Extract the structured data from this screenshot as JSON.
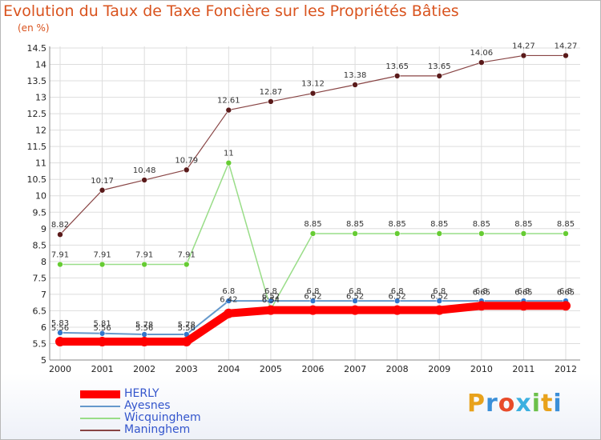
{
  "page": {
    "title": "Evolution du Taux de Taxe Foncière sur les Propriétés Bâties",
    "unit": "(en %)",
    "logo": "Proxiti",
    "logo_colors": [
      "#e8a21c",
      "#3b8fd8",
      "#e84b2a",
      "#3bb0e0",
      "#6cc04a",
      "#e8a21c",
      "#3b8fd8"
    ]
  },
  "chart_data": {
    "type": "line",
    "title": "Evolution du Taux de Taxe Foncière sur les Propriétés Bâties",
    "ylabel": "(en %)",
    "xlabel": "",
    "x": [
      "2000",
      "2001",
      "2002",
      "2003",
      "2004",
      "2005",
      "2006",
      "2007",
      "2008",
      "2009",
      "2010",
      "2011",
      "2012"
    ],
    "ylim": [
      5,
      14.5
    ],
    "yticks": [
      "5",
      "5.5",
      "6",
      "6.5",
      "7",
      "7.5",
      "8",
      "8.5",
      "9",
      "9.5",
      "10",
      "10.5",
      "11",
      "11.5",
      "12",
      "12.5",
      "13",
      "13.5",
      "14",
      "14.5"
    ],
    "grid": true,
    "legend_position": "bottom-left",
    "series": [
      {
        "name": "HERLY",
        "color": "#ff0000",
        "point_color": "#ff0000",
        "values": [
          5.56,
          5.56,
          5.56,
          5.56,
          6.42,
          6.52,
          6.52,
          6.52,
          6.52,
          6.52,
          6.65,
          6.65,
          6.65
        ],
        "labels": [
          "5.56",
          "5.56",
          "5.56",
          "5.56",
          "6.42",
          "6.52",
          "6.52",
          "6.52",
          "6.52",
          "6.52",
          "6.65",
          "6.65",
          "6.65"
        ]
      },
      {
        "name": "Ayesnes",
        "color": "#6699cc",
        "point_color": "#3377cc",
        "values": [
          5.83,
          5.81,
          5.78,
          5.78,
          6.8,
          6.8,
          6.8,
          6.8,
          6.8,
          6.8,
          6.8,
          6.8,
          6.8
        ],
        "labels": [
          "5.83",
          "5.81",
          "5.78",
          "5.78",
          "6.8",
          "6.8",
          "6.8",
          "6.8",
          "6.8",
          "6.8",
          "6.8",
          "6.8",
          "6.8"
        ]
      },
      {
        "name": "Wicquinghem",
        "color": "#99dd88",
        "point_color": "#66cc33",
        "values": [
          7.91,
          7.91,
          7.91,
          7.91,
          11,
          6.54,
          8.85,
          8.85,
          8.85,
          8.85,
          8.85,
          8.85,
          8.85
        ],
        "labels": [
          "7.91",
          "7.91",
          "7.91",
          "7.91",
          "11",
          "6.54",
          "8.85",
          "8.85",
          "8.85",
          "8.85",
          "8.85",
          "8.85",
          "8.85"
        ]
      },
      {
        "name": "Maninghem",
        "color": "#884444",
        "point_color": "#5a1a1a",
        "values": [
          8.82,
          10.17,
          10.48,
          10.79,
          12.61,
          12.87,
          13.12,
          13.38,
          13.65,
          13.65,
          14.06,
          14.27,
          14.27
        ],
        "labels": [
          "8.82",
          "10.17",
          "10.48",
          "10.79",
          "12.61",
          "12.87",
          "13.12",
          "13.38",
          "13.65",
          "13.65",
          "14.06",
          "14.27",
          "14.27"
        ]
      }
    ]
  }
}
